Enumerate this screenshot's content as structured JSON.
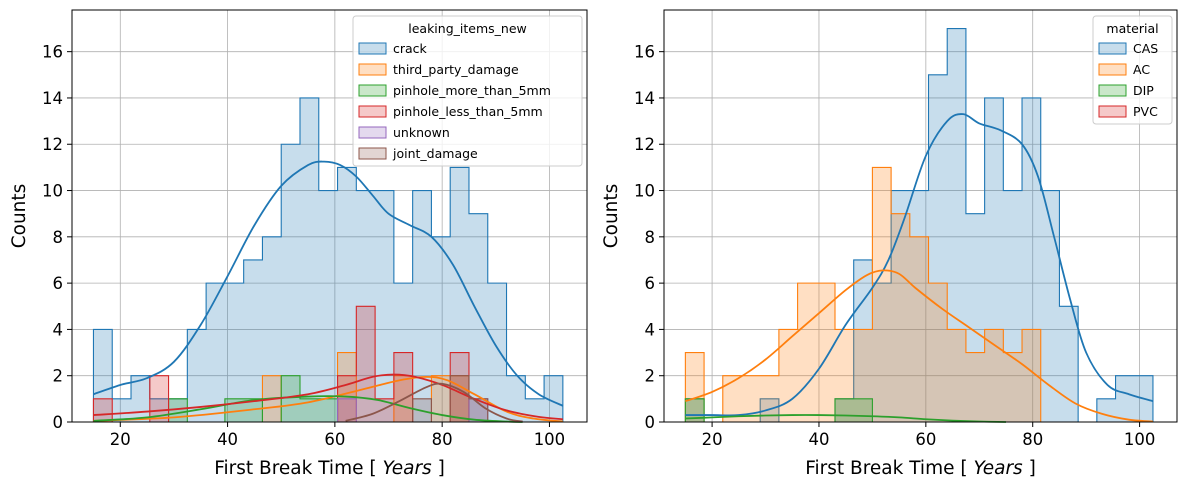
{
  "colors": {
    "blue": "#1f77b4",
    "orange": "#ff7f0e",
    "green": "#2ca02c",
    "red": "#d62728",
    "purple": "#9467bd",
    "brown": "#8c564b",
    "grid": "#b0b0b0"
  },
  "chart_data": [
    {
      "type": "histogram",
      "xlabel_prefix": "First Break Time [ ",
      "xlabel_unit": "Years",
      "xlabel_suffix": " ]",
      "ylabel": "Counts",
      "xlim": [
        11,
        107
      ],
      "ylim": [
        0,
        17.8
      ],
      "xticks": [
        20,
        40,
        60,
        80,
        100
      ],
      "yticks": [
        0,
        2,
        4,
        6,
        8,
        10,
        12,
        14,
        16
      ],
      "grid": true,
      "legend_position": "top-right",
      "legend_title": "leaking_items_new",
      "bin_edges": [
        15,
        18.5,
        22,
        25.5,
        29,
        32.5,
        36,
        39.5,
        43,
        46.5,
        50,
        53.5,
        57,
        60.5,
        64,
        67.5,
        71,
        74.5,
        78,
        81.5,
        85,
        88.5,
        92,
        95.5,
        99,
        102.5
      ],
      "series": [
        {
          "name": "crack",
          "color": "blue",
          "counts": [
            4,
            1,
            2,
            1,
            1,
            4,
            6,
            6,
            7,
            8,
            12,
            14,
            10,
            11,
            10,
            10,
            6,
            10,
            8,
            11,
            9,
            6,
            2,
            1,
            2
          ],
          "kde": [
            [
              15,
              1.2
            ],
            [
              20,
              1.6
            ],
            [
              25,
              1.9
            ],
            [
              30,
              2.6
            ],
            [
              35,
              4.2
            ],
            [
              40,
              6.3
            ],
            [
              45,
              8.5
            ],
            [
              50,
              10.2
            ],
            [
              55,
              11.1
            ],
            [
              58,
              11.25
            ],
            [
              61,
              11.1
            ],
            [
              64,
              10.6
            ],
            [
              67,
              9.8
            ],
            [
              70,
              9.0
            ],
            [
              74,
              8.5
            ],
            [
              78,
              8.0
            ],
            [
              82,
              6.8
            ],
            [
              86,
              5.0
            ],
            [
              90,
              3.3
            ],
            [
              94,
              2.0
            ],
            [
              98,
              1.2
            ],
            [
              102.5,
              0.7
            ]
          ]
        },
        {
          "name": "third_party_damage",
          "color": "orange",
          "counts": [
            0,
            0,
            0,
            0,
            0,
            0,
            0,
            0,
            0,
            2,
            0,
            0,
            0,
            3,
            0,
            0,
            2,
            0,
            2,
            2,
            0,
            0,
            0,
            0,
            0
          ],
          "kde": [
            [
              15,
              0.05
            ],
            [
              30,
              0.2
            ],
            [
              45,
              0.55
            ],
            [
              55,
              0.85
            ],
            [
              65,
              1.4
            ],
            [
              72,
              1.8
            ],
            [
              77,
              1.95
            ],
            [
              81,
              1.8
            ],
            [
              86,
              1.2
            ],
            [
              92,
              0.45
            ],
            [
              97,
              0.15
            ],
            [
              102.5,
              0.02
            ]
          ]
        },
        {
          "name": "pinhole_more_than_5mm",
          "color": "green",
          "counts": [
            0,
            0,
            0,
            0,
            1,
            0,
            0,
            1,
            1,
            0,
            2,
            1,
            1,
            0,
            0,
            0,
            0,
            0,
            0,
            0,
            0,
            0,
            0,
            0,
            0
          ],
          "kde": [
            [
              15,
              0.05
            ],
            [
              25,
              0.2
            ],
            [
              35,
              0.55
            ],
            [
              45,
              0.95
            ],
            [
              55,
              1.1
            ],
            [
              62,
              1.1
            ],
            [
              68,
              0.95
            ],
            [
              74,
              0.6
            ],
            [
              80,
              0.3
            ],
            [
              86,
              0.1
            ],
            [
              92,
              0.02
            ],
            [
              95,
              0
            ]
          ]
        },
        {
          "name": "pinhole_less_than_5mm",
          "color": "red",
          "counts": [
            1,
            0,
            0,
            2,
            0,
            0,
            0,
            0,
            0,
            0,
            0,
            0,
            0,
            2,
            5,
            1,
            3,
            0,
            0,
            3,
            0,
            0,
            0,
            0,
            0
          ],
          "kde": [
            [
              15,
              0.3
            ],
            [
              25,
              0.45
            ],
            [
              35,
              0.65
            ],
            [
              45,
              0.9
            ],
            [
              55,
              1.2
            ],
            [
              62,
              1.6
            ],
            [
              67,
              1.95
            ],
            [
              71,
              2.05
            ],
            [
              75,
              1.95
            ],
            [
              80,
              1.6
            ],
            [
              86,
              1.0
            ],
            [
              92,
              0.5
            ],
            [
              98,
              0.22
            ],
            [
              102.5,
              0.12
            ]
          ]
        },
        {
          "name": "unknown",
          "color": "purple",
          "counts": [
            0,
            0,
            0,
            0,
            0,
            0,
            0,
            0,
            0,
            0,
            0,
            0,
            0,
            1,
            0,
            0,
            0,
            0,
            0,
            0,
            1,
            0,
            0,
            0,
            0
          ],
          "kde": []
        },
        {
          "name": "joint_damage",
          "color": "brown",
          "counts": [
            0,
            0,
            0,
            0,
            0,
            0,
            0,
            0,
            0,
            0,
            0,
            0,
            0,
            0,
            0,
            0,
            0,
            1,
            0,
            2,
            1,
            0,
            0,
            0,
            0
          ],
          "kde": [
            [
              62,
              0.05
            ],
            [
              67,
              0.35
            ],
            [
              72,
              0.9
            ],
            [
              77,
              1.5
            ],
            [
              80,
              1.65
            ],
            [
              84,
              1.3
            ],
            [
              88,
              0.6
            ],
            [
              92,
              0.15
            ],
            [
              95,
              0.02
            ]
          ]
        }
      ]
    },
    {
      "type": "histogram",
      "xlabel_prefix": "First Break Time [ ",
      "xlabel_unit": "Years",
      "xlabel_suffix": " ]",
      "ylabel": "Counts",
      "xlim": [
        11,
        107
      ],
      "ylim": [
        0,
        17.8
      ],
      "xticks": [
        20,
        40,
        60,
        80,
        100
      ],
      "yticks": [
        0,
        2,
        4,
        6,
        8,
        10,
        12,
        14,
        16
      ],
      "grid": true,
      "legend_position": "top-right",
      "legend_title": "material",
      "bin_edges": [
        15,
        18.5,
        22,
        25.5,
        29,
        32.5,
        36,
        39.5,
        43,
        46.5,
        50,
        53.5,
        57,
        60.5,
        64,
        67.5,
        71,
        74.5,
        78,
        81.5,
        85,
        88.5,
        92,
        95.5,
        99,
        102.5
      ],
      "series": [
        {
          "name": "CAS",
          "color": "blue",
          "counts": [
            1,
            0,
            0,
            0,
            1,
            0,
            0,
            0,
            1,
            7,
            6,
            10,
            10,
            15,
            17,
            9,
            14,
            10,
            14,
            10,
            5,
            0,
            1,
            2,
            2
          ],
          "kde": [
            [
              15,
              0.3
            ],
            [
              20,
              0.3
            ],
            [
              25,
              0.3
            ],
            [
              30,
              0.5
            ],
            [
              35,
              1.0
            ],
            [
              40,
              2.3
            ],
            [
              45,
              4.2
            ],
            [
              50,
              5.8
            ],
            [
              53,
              7.0
            ],
            [
              56,
              8.8
            ],
            [
              60,
              11.5
            ],
            [
              64,
              13.0
            ],
            [
              67,
              13.3
            ],
            [
              70,
              12.9
            ],
            [
              74,
              12.6
            ],
            [
              78,
              12.0
            ],
            [
              81,
              10.6
            ],
            [
              84,
              8.0
            ],
            [
              87,
              5.3
            ],
            [
              90,
              3.0
            ],
            [
              94,
              1.6
            ],
            [
              98,
              1.2
            ],
            [
              102.5,
              0.9
            ]
          ]
        },
        {
          "name": "AC",
          "color": "orange",
          "counts": [
            3,
            0,
            2,
            2,
            2,
            4,
            6,
            6,
            4,
            4,
            11,
            9,
            8,
            6,
            4,
            3,
            4,
            3,
            4,
            0,
            0,
            0,
            0,
            0,
            0
          ],
          "kde": [
            [
              15,
              0.9
            ],
            [
              20,
              1.3
            ],
            [
              25,
              1.9
            ],
            [
              30,
              2.7
            ],
            [
              35,
              3.7
            ],
            [
              40,
              4.7
            ],
            [
              45,
              5.7
            ],
            [
              49,
              6.35
            ],
            [
              52,
              6.55
            ],
            [
              55,
              6.4
            ],
            [
              58,
              5.8
            ],
            [
              63,
              4.9
            ],
            [
              68,
              4.1
            ],
            [
              73,
              3.3
            ],
            [
              78,
              2.5
            ],
            [
              83,
              1.6
            ],
            [
              88,
              0.8
            ],
            [
              93,
              0.35
            ],
            [
              98,
              0.1
            ],
            [
              102.5,
              0.02
            ]
          ]
        },
        {
          "name": "DIP",
          "color": "green",
          "counts": [
            1,
            0,
            0,
            0,
            0,
            0,
            0,
            0,
            1,
            1,
            0,
            0,
            0,
            0,
            0,
            0,
            0,
            0,
            0,
            0,
            0,
            0,
            0,
            0,
            0
          ],
          "kde": [
            [
              15,
              0.15
            ],
            [
              20,
              0.2
            ],
            [
              25,
              0.25
            ],
            [
              30,
              0.28
            ],
            [
              35,
              0.3
            ],
            [
              40,
              0.3
            ],
            [
              45,
              0.28
            ],
            [
              50,
              0.25
            ],
            [
              55,
              0.2
            ],
            [
              60,
              0.12
            ],
            [
              65,
              0.06
            ],
            [
              70,
              0.02
            ],
            [
              75,
              0
            ]
          ]
        },
        {
          "name": "PVC",
          "color": "red",
          "counts": [
            0,
            0,
            0,
            0,
            0,
            0,
            0,
            0,
            0,
            0,
            0,
            0,
            0,
            0,
            0,
            0,
            0,
            0,
            0,
            0,
            0,
            0,
            0,
            0,
            0
          ],
          "kde": []
        }
      ]
    }
  ]
}
